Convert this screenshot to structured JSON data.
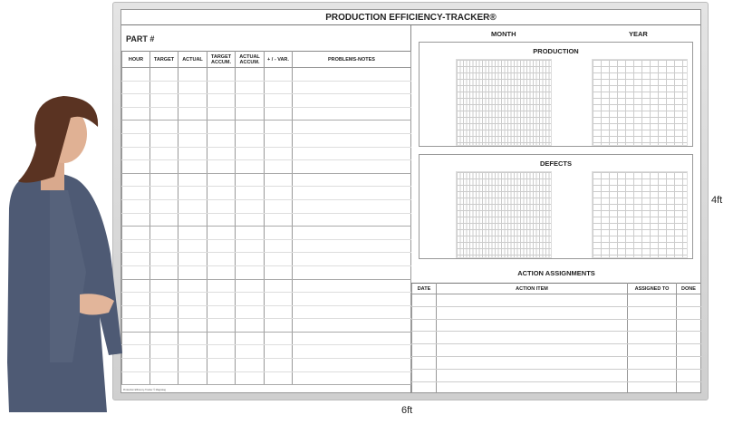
{
  "board": {
    "title": "PRODUCTION EFFICIENCY-TRACKER®",
    "part_label": "PART #",
    "log_columns": [
      "HOUR",
      "TARGET",
      "ACTUAL",
      "TARGET ACCUM.",
      "ACTUAL ACCUM.",
      "+ / - VAR.",
      "PROBLEMS-NOTES"
    ],
    "month_label": "MONTH",
    "year_label": "YEAR",
    "production_chart_title": "PRODUCTION",
    "defects_chart_title": "DEFECTS",
    "action_title": "ACTION ASSIGNMENTS",
    "action_columns": [
      "DATE",
      "ACTION ITEM",
      "ASSIGNED TO",
      "DONE"
    ],
    "footer": "Production Efficiency-Tracker © Magnatag"
  },
  "dimensions": {
    "height": "4ft",
    "width": "6ft"
  },
  "colors": {
    "frame": "#d6d6d6",
    "suit": "#4a5670",
    "hair": "#5a3322"
  }
}
